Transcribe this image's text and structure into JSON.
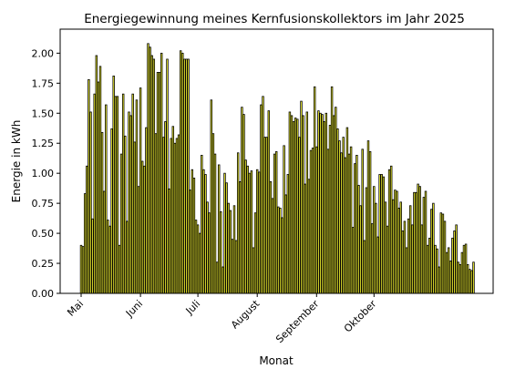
{
  "chart_data": {
    "type": "bar",
    "title": "Energiegewinnung meines Kernfusionskollektors im Jahr 2025",
    "xlabel": "Monat",
    "ylabel": "Energie in kWh",
    "ylim": [
      0,
      2.2
    ],
    "yticks": [
      "0.00",
      "0.25",
      "0.50",
      "0.75",
      "1.00",
      "1.25",
      "1.50",
      "1.75",
      "2.00"
    ],
    "ytick_values": [
      0,
      0.25,
      0.5,
      0.75,
      1.0,
      1.25,
      1.5,
      1.75,
      2.0
    ],
    "xticks": [
      {
        "label": "Mai",
        "date": "2025-05-01"
      },
      {
        "label": "Juni",
        "date": "2025-06-01"
      },
      {
        "label": "Juli",
        "date": "2025-07-01"
      },
      {
        "label": "August",
        "date": "2025-08-01"
      },
      {
        "label": "September",
        "date": "2025-09-01"
      },
      {
        "label": "Oktober",
        "date": "2025-10-01"
      }
    ],
    "x_start": "2025-05-01",
    "bar_color": "#ffff33",
    "edge_color": "#000000",
    "grid": false,
    "values": [
      0.4,
      0.39,
      0.83,
      1.06,
      1.78,
      1.51,
      0.62,
      1.66,
      1.98,
      1.76,
      1.89,
      1.34,
      0.85,
      1.57,
      0.61,
      0.56,
      1.37,
      1.81,
      1.64,
      1.64,
      0.4,
      1.16,
      1.66,
      1.31,
      0.6,
      1.51,
      1.48,
      1.66,
      1.26,
      1.61,
      0.89,
      1.71,
      1.1,
      1.06,
      1.38,
      2.08,
      2.05,
      1.98,
      1.95,
      1.33,
      1.84,
      1.84,
      2.0,
      1.3,
      1.43,
      1.95,
      0.87,
      1.29,
      1.39,
      1.25,
      1.29,
      1.32,
      2.02,
      2.0,
      1.95,
      1.95,
      1.95,
      0.86,
      1.03,
      0.96,
      0.61,
      0.57,
      0.5,
      1.15,
      1.03,
      0.99,
      0.76,
      0.67,
      1.61,
      1.33,
      1.16,
      0.26,
      1.07,
      0.68,
      0.22,
      1.0,
      0.92,
      0.75,
      0.69,
      0.45,
      0.73,
      0.44,
      1.17,
      0.93,
      1.55,
      1.49,
      1.11,
      1.06,
      1.0,
      1.02,
      0.38,
      0.67,
      1.03,
      1.01,
      1.57,
      1.64,
      1.3,
      1.3,
      1.52,
      0.93,
      0.79,
      1.16,
      1.18,
      0.72,
      0.71,
      0.63,
      1.23,
      0.82,
      0.99,
      1.51,
      1.48,
      1.43,
      1.46,
      1.45,
      1.3,
      1.6,
      1.48,
      0.91,
      1.51,
      0.95,
      1.19,
      1.21,
      1.72,
      1.22,
      1.52,
      1.5,
      1.49,
      1.43,
      1.5,
      1.2,
      1.4,
      1.72,
      1.48,
      1.55,
      1.37,
      1.27,
      1.17,
      1.3,
      1.13,
      1.38,
      1.16,
      1.22,
      0.55,
      1.08,
      1.15,
      0.9,
      0.73,
      1.2,
      0.44,
      0.88,
      1.27,
      1.18,
      0.58,
      0.89,
      0.75,
      0.47,
      0.99,
      0.99,
      0.97,
      0.76,
      0.56,
      1.03,
      1.06,
      0.78,
      0.86,
      0.85,
      0.71,
      0.76,
      0.52,
      0.6,
      0.38,
      0.62,
      0.73,
      0.57,
      0.84,
      0.84,
      0.91,
      0.89,
      0.57,
      0.8,
      0.85,
      0.4,
      0.46,
      0.7,
      0.75,
      0.4,
      0.37,
      0.22,
      0.67,
      0.66,
      0.6,
      0.34,
      0.38,
      0.27,
      0.46,
      0.52,
      0.57,
      0.26,
      0.24,
      0.34,
      0.4,
      0.41,
      0.24,
      0.2,
      0.19,
      0.26
    ]
  }
}
